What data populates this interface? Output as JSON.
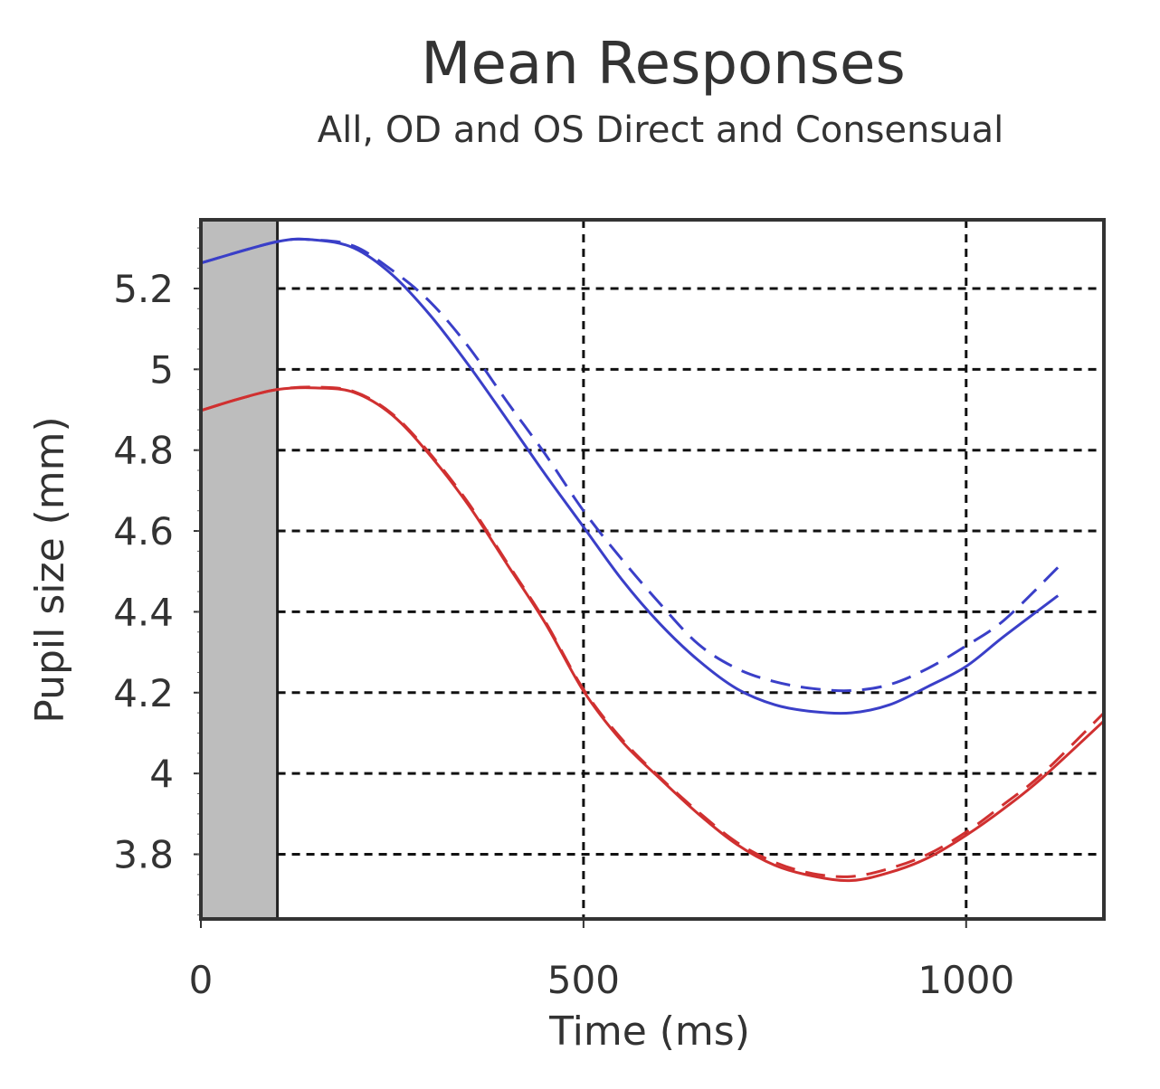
{
  "chart_data": {
    "type": "line",
    "title": "Mean Responses",
    "subtitle": "All, OD and OS Direct and Consensual",
    "xlabel": "Time (ms)",
    "ylabel": "Pupil size (mm)",
    "xlim": [
      0,
      1180
    ],
    "ylim": [
      3.64,
      5.37
    ],
    "xticks": [
      0,
      500,
      1000
    ],
    "yticks": [
      3.8,
      4,
      4.2,
      4.4,
      4.6,
      4.8,
      5,
      5.2
    ],
    "ytick_labels": [
      "3.8",
      "4",
      "4.2",
      "4.4",
      "4.6",
      "4.8",
      "5",
      "5.2"
    ],
    "xtick_labels": [
      "0",
      "500",
      "1000"
    ],
    "grid": true,
    "shaded_region": {
      "x": [
        0,
        100
      ],
      "color": "#bdbdbd"
    },
    "series": [
      {
        "color": "#3a3fc8",
        "style": "solid",
        "x": [
          0,
          100,
          150,
          200,
          250,
          300,
          350,
          400,
          450,
          500,
          550,
          600,
          650,
          700,
          750,
          800,
          850,
          900,
          950,
          1000,
          1050,
          1120
        ],
        "y": [
          5.263,
          5.316,
          5.32,
          5.3,
          5.234,
          5.133,
          5.01,
          4.876,
          4.74,
          4.61,
          4.48,
          4.37,
          4.28,
          4.21,
          4.17,
          4.153,
          4.15,
          4.17,
          4.215,
          4.265,
          4.34,
          4.44
        ]
      },
      {
        "color": "#3a3fc8",
        "style": "dashed",
        "x": [
          0,
          100,
          150,
          200,
          250,
          300,
          350,
          400,
          450,
          500,
          550,
          600,
          650,
          700,
          750,
          800,
          850,
          900,
          950,
          1000,
          1050,
          1120
        ],
        "y": [
          5.263,
          5.316,
          5.32,
          5.305,
          5.245,
          5.166,
          5.055,
          4.92,
          4.79,
          4.65,
          4.53,
          4.42,
          4.32,
          4.26,
          4.227,
          4.21,
          4.205,
          4.22,
          4.26,
          4.316,
          4.38,
          4.51
        ]
      },
      {
        "color": "#d03030",
        "style": "solid",
        "x": [
          0,
          50,
          100,
          150,
          200,
          250,
          300,
          350,
          400,
          450,
          500,
          550,
          600,
          650,
          700,
          750,
          800,
          850,
          900,
          950,
          1000,
          1050,
          1100,
          1180
        ],
        "y": [
          4.898,
          4.927,
          4.95,
          4.954,
          4.943,
          4.887,
          4.786,
          4.663,
          4.518,
          4.372,
          4.204,
          4.08,
          3.987,
          3.9,
          3.825,
          3.773,
          3.746,
          3.735,
          3.755,
          3.791,
          3.847,
          3.914,
          3.99,
          4.13
        ]
      },
      {
        "color": "#d03030",
        "style": "dashed",
        "x": [
          0,
          50,
          100,
          150,
          200,
          250,
          300,
          350,
          400,
          450,
          500,
          550,
          600,
          650,
          700,
          750,
          800,
          850,
          900,
          950,
          1000,
          1050,
          1100,
          1180
        ],
        "y": [
          4.898,
          4.927,
          4.95,
          4.956,
          4.945,
          4.89,
          4.79,
          4.668,
          4.522,
          4.376,
          4.208,
          4.085,
          3.99,
          3.905,
          3.83,
          3.78,
          3.752,
          3.745,
          3.765,
          3.8,
          3.855,
          3.925,
          4.0,
          4.15
        ]
      }
    ]
  }
}
